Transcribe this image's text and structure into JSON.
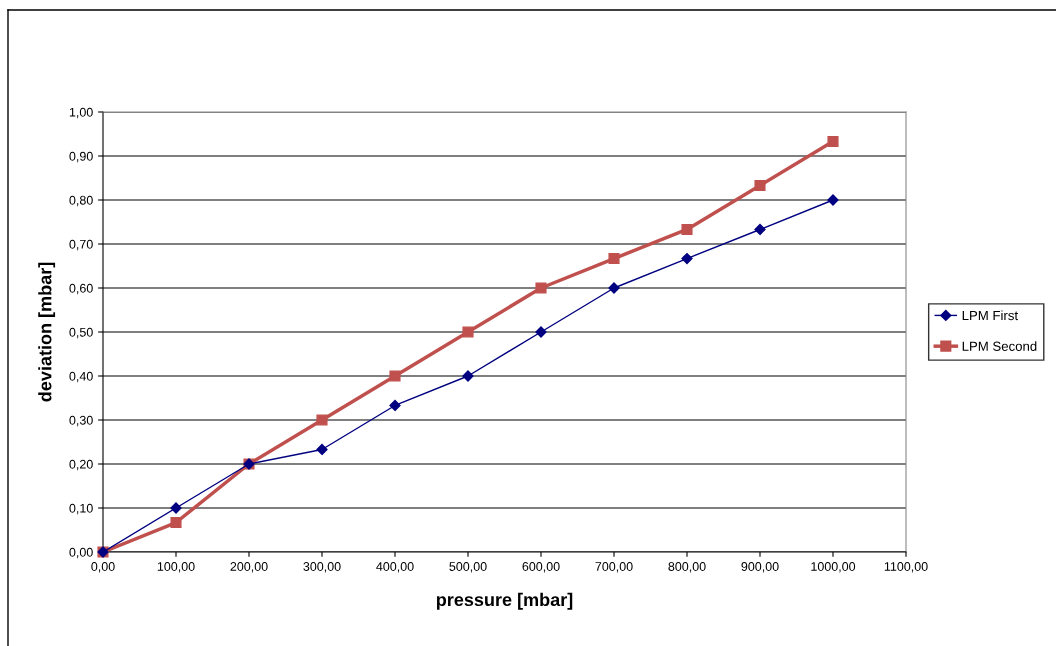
{
  "chart_data": {
    "type": "line",
    "xlabel": "pressure [mbar]",
    "ylabel": "deviation [mbar]",
    "x": [
      0,
      100,
      200,
      300,
      400,
      500,
      600,
      700,
      800,
      900,
      1000
    ],
    "series": [
      {
        "name": "LPM First",
        "color": "#000080",
        "marker": "diamond",
        "values": [
          0,
          0.1,
          0.2,
          0.233,
          0.333,
          0.4,
          0.5,
          0.6,
          0.667,
          0.733,
          0.8
        ]
      },
      {
        "name": "LPM Second",
        "color": "#c0504d",
        "marker": "square",
        "values": [
          0,
          0.067,
          0.2,
          0.3,
          0.4,
          0.5,
          0.6,
          0.667,
          0.733,
          0.833,
          0.933
        ]
      }
    ],
    "xlim": [
      0,
      1100
    ],
    "xticks": [
      {
        "value": 0,
        "label": "0,00"
      },
      {
        "value": 100,
        "label": "100,00"
      },
      {
        "value": 200,
        "label": "200,00"
      },
      {
        "value": 300,
        "label": "300,00"
      },
      {
        "value": 400,
        "label": "400,00"
      },
      {
        "value": 500,
        "label": "500,00"
      },
      {
        "value": 600,
        "label": "600,00"
      },
      {
        "value": 700,
        "label": "700,00"
      },
      {
        "value": 800,
        "label": "800,00"
      },
      {
        "value": 900,
        "label": "900,00"
      },
      {
        "value": 1000,
        "label": "1000,00"
      },
      {
        "value": 1100,
        "label": "1100,00"
      }
    ],
    "ylim": [
      0,
      1
    ],
    "yticks": [
      {
        "value": 0,
        "label": "0,00"
      },
      {
        "value": 0.1,
        "label": "0,10"
      },
      {
        "value": 0.2,
        "label": "0,20"
      },
      {
        "value": 0.3,
        "label": "0,30"
      },
      {
        "value": 0.4,
        "label": "0,40"
      },
      {
        "value": 0.5,
        "label": "0,50"
      },
      {
        "value": 0.6,
        "label": "0,60"
      },
      {
        "value": 0.7,
        "label": "0,70"
      },
      {
        "value": 0.8,
        "label": "0,80"
      },
      {
        "value": 0.9,
        "label": "0,90"
      },
      {
        "value": 1,
        "label": "1,00"
      }
    ],
    "grid": "y",
    "legend": "right",
    "line_style": "solid"
  }
}
